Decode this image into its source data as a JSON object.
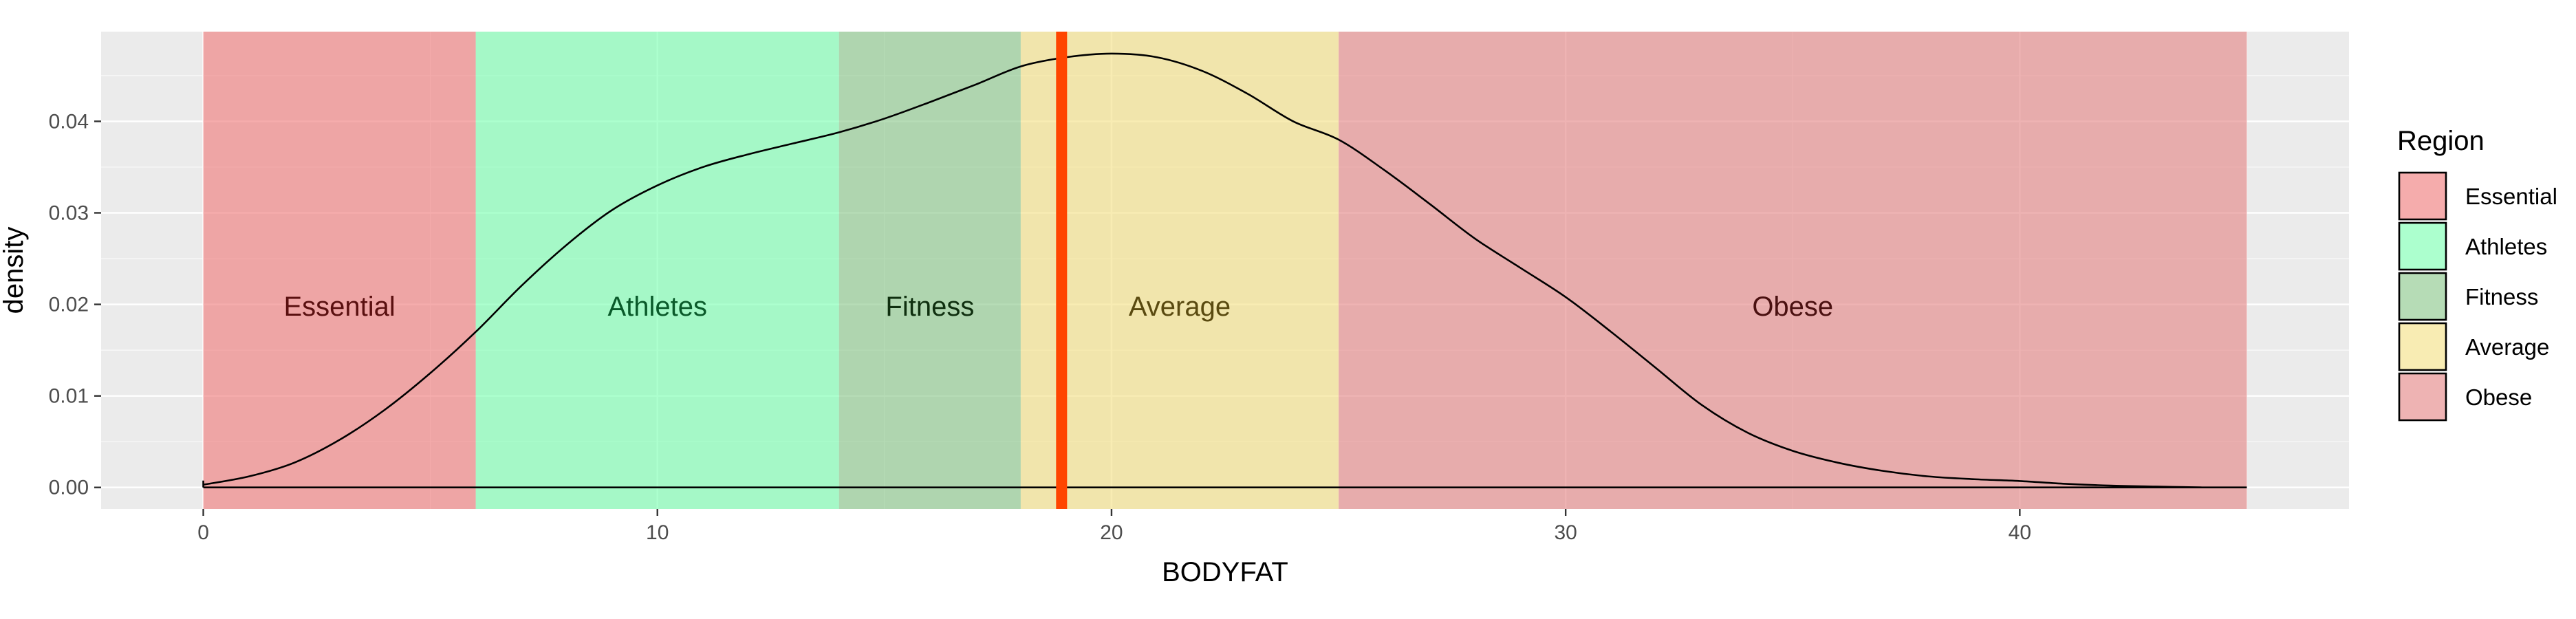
{
  "chart_data": {
    "type": "area",
    "xlabel": "BODYFAT",
    "ylabel": "density",
    "xlim": [
      -2.25,
      47.25
    ],
    "ylim": [
      -0.00235,
      0.0498
    ],
    "x_ticks": [
      0,
      10,
      20,
      30,
      40
    ],
    "y_ticks": [
      0.0,
      0.01,
      0.02,
      0.03,
      0.04
    ],
    "x_tick_labels": [
      "0",
      "10",
      "20",
      "30",
      "40"
    ],
    "y_tick_labels": [
      "0.00",
      "0.01",
      "0.02",
      "0.03",
      "0.04"
    ],
    "grid": true,
    "background": "#ebebeb",
    "regions": [
      {
        "name": "Essential",
        "start": 0,
        "end": 6,
        "color": "#f08080",
        "label_x": 3,
        "label_y": 0.0198,
        "label_color": "#5a1010"
      },
      {
        "name": "Athletes",
        "start": 6,
        "end": 14,
        "color": "#7fffb4",
        "label_x": 10,
        "label_y": 0.0198,
        "label_color": "#0a5a2a"
      },
      {
        "name": "Fitness",
        "start": 14,
        "end": 18,
        "color": "#8fc98f",
        "label_x": 16,
        "label_y": 0.0198,
        "label_color": "#0f2f0f"
      },
      {
        "name": "Average",
        "start": 18,
        "end": 25,
        "color": "#f5e28a",
        "label_x": 21.5,
        "label_y": 0.0198,
        "label_color": "#5a4a10"
      },
      {
        "name": "Obese",
        "start": 25,
        "end": 45,
        "color": "#e58a8a",
        "label_x": 35,
        "label_y": 0.0198,
        "label_color": "#4a1010"
      }
    ],
    "region_opacity": 0.65,
    "vline": {
      "x": 18.9,
      "color": "#ff4500"
    },
    "density_curve": {
      "x": [
        0,
        1,
        2,
        3,
        4,
        5,
        6,
        7,
        8,
        9,
        10,
        11,
        12,
        13,
        14,
        15,
        16,
        17,
        18,
        19,
        20,
        21,
        22,
        23,
        24,
        25,
        26,
        27,
        28,
        29,
        30,
        31,
        32,
        33,
        34,
        35,
        36,
        37,
        38,
        39,
        40,
        41,
        42,
        43,
        44
      ],
      "y": [
        0.0003,
        0.0012,
        0.0027,
        0.0052,
        0.0085,
        0.0125,
        0.017,
        0.022,
        0.0265,
        0.0303,
        0.033,
        0.035,
        0.0364,
        0.0376,
        0.0388,
        0.0403,
        0.0421,
        0.044,
        0.046,
        0.047,
        0.0474,
        0.047,
        0.0455,
        0.043,
        0.04,
        0.038,
        0.0347,
        0.031,
        0.0272,
        0.024,
        0.0208,
        0.017,
        0.013,
        0.009,
        0.006,
        0.004,
        0.0027,
        0.0018,
        0.0012,
        0.0009,
        0.0007,
        0.0004,
        0.0002,
        0.0001,
        0.0
      ]
    },
    "baseline_end": 45,
    "legend": {
      "title": "Region",
      "position": "right"
    }
  }
}
